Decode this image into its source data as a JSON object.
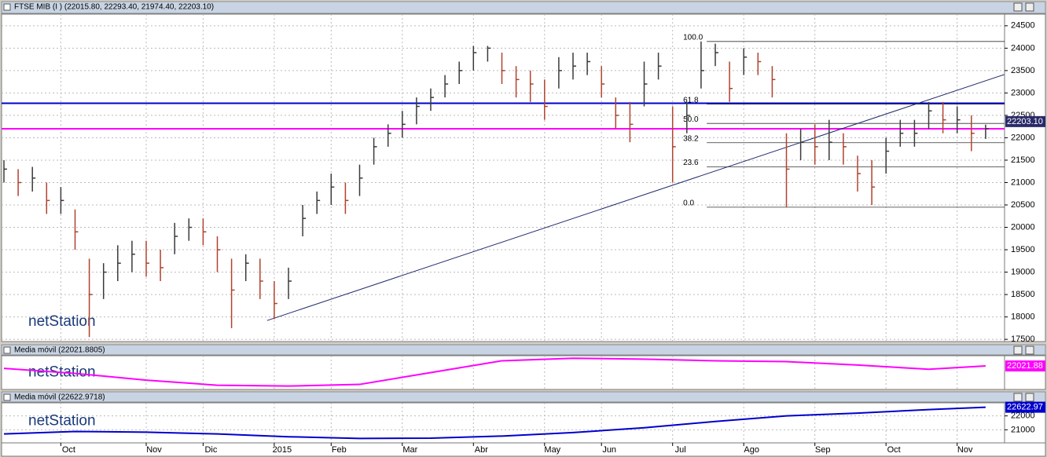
{
  "chart_data": [
    {
      "type": "ohlc",
      "title": "FTSE MIB (I ) (22015.80, 22293.40, 21974.40, 22203.10)",
      "watermark": "netStation",
      "categories": [
        null,
        null,
        null,
        null,
        "Oct",
        null,
        null,
        null,
        null,
        null,
        "Nov",
        null,
        null,
        null,
        "Dic",
        null,
        null,
        null,
        null,
        "2015",
        null,
        null,
        null,
        "Feb",
        null,
        null,
        null,
        null,
        "Mar",
        null,
        null,
        null,
        null,
        "Abr",
        null,
        null,
        null,
        null,
        "May",
        null,
        null,
        null,
        "Jun",
        null,
        null,
        null,
        null,
        "Jul",
        null,
        null,
        null,
        null,
        "Ago",
        null,
        null,
        null,
        null,
        "Sep",
        null,
        null,
        null,
        null,
        "Oct",
        null,
        null,
        null,
        null,
        "Nov",
        null,
        null
      ],
      "high": [
        21500,
        21300,
        21350,
        21000,
        20900,
        20400,
        19300,
        19200,
        19600,
        19700,
        19700,
        19500,
        20100,
        20200,
        20200,
        19800,
        19300,
        19400,
        19300,
        18800,
        19100,
        20500,
        20800,
        21200,
        21000,
        21400,
        22000,
        22300,
        22600,
        22900,
        23100,
        23400,
        23700,
        24050,
        24050,
        23900,
        23600,
        23500,
        23300,
        23800,
        23900,
        23900,
        23600,
        22900,
        22800,
        23700,
        23900,
        22700,
        22800,
        24150,
        24100,
        23700,
        24000,
        23900,
        23600,
        22100,
        22200,
        22300,
        22400,
        22100,
        21600,
        21500,
        22000,
        22400,
        22400,
        22800,
        22800,
        22700,
        22500,
        22293.4
      ],
      "low": [
        21000,
        20700,
        20800,
        20300,
        20300,
        19500,
        17550,
        18400,
        18800,
        19000,
        18900,
        18800,
        19400,
        19700,
        19600,
        19000,
        17750,
        18800,
        18400,
        17950,
        18400,
        19800,
        20300,
        20500,
        20300,
        20700,
        21400,
        21800,
        22000,
        22300,
        22600,
        22900,
        23200,
        23500,
        23700,
        23200,
        22900,
        22800,
        22400,
        23100,
        23300,
        23400,
        22900,
        22200,
        21900,
        22700,
        23300,
        21000,
        22100,
        23100,
        23600,
        22800,
        23400,
        23400,
        22900,
        20450,
        21500,
        21400,
        21500,
        21400,
        20800,
        20500,
        21200,
        21800,
        21800,
        22200,
        22100,
        22100,
        21700,
        21974.4
      ],
      "close": [
        21300,
        21000,
        21100,
        20600,
        20600,
        19900,
        18500,
        19000,
        19200,
        19400,
        19200,
        19100,
        19800,
        20000,
        19900,
        19500,
        18600,
        19200,
        18800,
        18300,
        18800,
        20200,
        20600,
        20900,
        20600,
        21100,
        21800,
        22100,
        22300,
        22700,
        22900,
        23200,
        23500,
        23900,
        24000,
        23500,
        23300,
        23200,
        22700,
        23500,
        23600,
        23700,
        23200,
        22500,
        22300,
        23200,
        23600,
        21800,
        22500,
        23500,
        23900,
        23100,
        23800,
        23700,
        23300,
        21300,
        21900,
        21800,
        21900,
        21800,
        21200,
        20900,
        21700,
        22100,
        22100,
        22600,
        22400,
        22400,
        22100,
        22203.1
      ],
      "last_label": "22203.10",
      "up_color": "#3a3a3a",
      "down_color": "#b0422e",
      "ylim": [
        17450,
        24760
      ],
      "yticks": [
        17500,
        18000,
        18500,
        19000,
        19500,
        20000,
        20500,
        21000,
        21500,
        22000,
        22500,
        23000,
        23500,
        24000,
        24500
      ],
      "grid": true,
      "hlines": [
        {
          "value": 22770,
          "color": "#0000cc"
        },
        {
          "value": 22200,
          "color": "#ff00ff"
        }
      ],
      "trendline": [
        [
          18.5,
          17920
        ],
        [
          70.3,
          23410
        ]
      ],
      "fibonacci": {
        "start": 49.4,
        "levels": [
          24150,
          22750,
          22320,
          21890,
          21350,
          20450
        ],
        "labels": [
          "100.0",
          "61.8",
          "50.0",
          "38.2",
          "23.6",
          "0.0"
        ]
      }
    },
    {
      "type": "line",
      "title": "Media móvil (22021.8805)",
      "watermark": "netStation",
      "color": "#ff00ff",
      "x": [
        0,
        5,
        10,
        15,
        20,
        25,
        30,
        35,
        40,
        45,
        50,
        55,
        60,
        65,
        69
      ],
      "values": [
        21660,
        20900,
        19890,
        19130,
        19000,
        19250,
        21030,
        22800,
        23180,
        23050,
        22800,
        22670,
        22160,
        21530,
        22021.88
      ],
      "last_label": "22021.88",
      "ylim": [
        18490,
        23560
      ]
    },
    {
      "type": "line",
      "title": "Media móvil (22622.9718)",
      "watermark": "netStation",
      "color": "#0000cc",
      "x": [
        0,
        5,
        10,
        15,
        20,
        25,
        30,
        35,
        40,
        45,
        50,
        55,
        60,
        65,
        69
      ],
      "values": [
        20700,
        20880,
        20830,
        20700,
        20500,
        20380,
        20400,
        20550,
        20800,
        21150,
        21600,
        22000,
        22200,
        22450,
        22622.97
      ],
      "last_label": "22622.97",
      "ylim": [
        20060,
        22940
      ],
      "yticks": [
        21000,
        22000
      ],
      "grid": true
    }
  ]
}
